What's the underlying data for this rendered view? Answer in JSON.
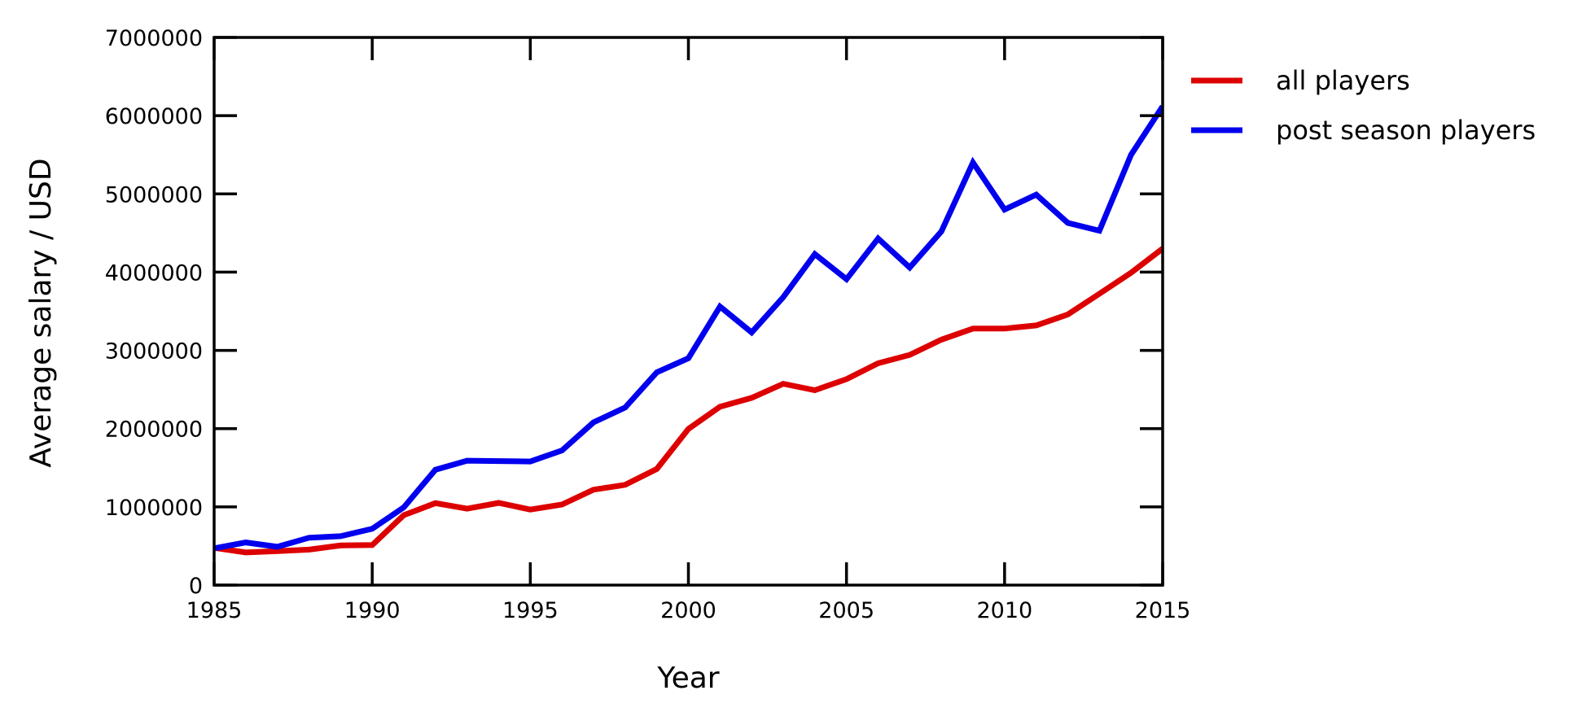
{
  "chart_data": {
    "type": "line",
    "title": "",
    "xlabel": "Year",
    "ylabel": "Average salary / USD",
    "xlim": [
      1985,
      2015
    ],
    "ylim": [
      0,
      7000000
    ],
    "xticks": [
      1985,
      1990,
      1995,
      2000,
      2005,
      2010,
      2015
    ],
    "yticks": [
      0,
      1000000,
      2000000,
      3000000,
      4000000,
      5000000,
      6000000,
      7000000
    ],
    "xtick_labels": [
      "1985",
      "1990",
      "1995",
      "2000",
      "2005",
      "2010",
      "2015"
    ],
    "ytick_labels": [
      "0",
      "1000000",
      "2000000",
      "3000000",
      "4000000",
      "5000000",
      "6000000",
      "7000000"
    ],
    "grid": false,
    "legend_position": "outside-right-top",
    "x": [
      1985,
      1986,
      1987,
      1988,
      1989,
      1990,
      1991,
      1992,
      1993,
      1994,
      1995,
      1996,
      1997,
      1998,
      1999,
      2000,
      2001,
      2002,
      2003,
      2004,
      2005,
      2006,
      2007,
      2008,
      2009,
      2010,
      2011,
      2012,
      2013,
      2014,
      2015
    ],
    "series": [
      {
        "name": "all players",
        "color": "#dd0000",
        "values": [
          476000,
          417000,
          434000,
          453000,
          507000,
          512000,
          894000,
          1047000,
          977000,
          1050000,
          965000,
          1030000,
          1220000,
          1281000,
          1484000,
          1996000,
          2280000,
          2393000,
          2573000,
          2491000,
          2633000,
          2835000,
          2942000,
          3137000,
          3278000,
          3279000,
          3319000,
          3459000,
          3724000,
          3992000,
          4302000
        ]
      },
      {
        "name": "post season players",
        "color": "#0000ee",
        "values": [
          470000,
          545000,
          490000,
          605000,
          625000,
          720000,
          994000,
          1475000,
          1590000,
          1585000,
          1580000,
          1720000,
          2080000,
          2270000,
          2720000,
          2900000,
          3560000,
          3230000,
          3680000,
          4230000,
          3910000,
          4430000,
          4060000,
          4520000,
          5400000,
          4800000,
          4990000,
          4630000,
          4530000,
          5500000,
          6120000
        ]
      }
    ]
  }
}
